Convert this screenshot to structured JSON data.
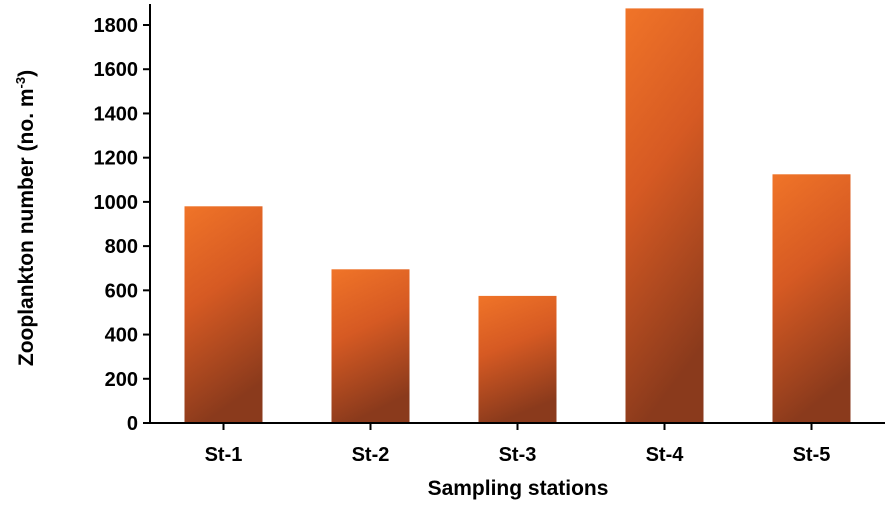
{
  "chart_data": {
    "type": "bar",
    "categories": [
      "St-1",
      "St-2",
      "St-3",
      "St-4",
      "St-5"
    ],
    "values": [
      980,
      695,
      575,
      1875,
      1125
    ],
    "xlabel": "Sampling stations",
    "ylabel": {
      "text": "Zooplankton number (no. m",
      "superscript": "-3",
      "suffix": ")"
    },
    "ylim": [
      0,
      1900
    ],
    "yticks": [
      0,
      200,
      400,
      600,
      800,
      1000,
      1200,
      1400,
      1600,
      1800
    ],
    "grid": false,
    "legend": "none",
    "colors": {
      "bar_top": "#f07428",
      "bar_bottom": "#8a3a1c",
      "axis": "#000000"
    }
  }
}
